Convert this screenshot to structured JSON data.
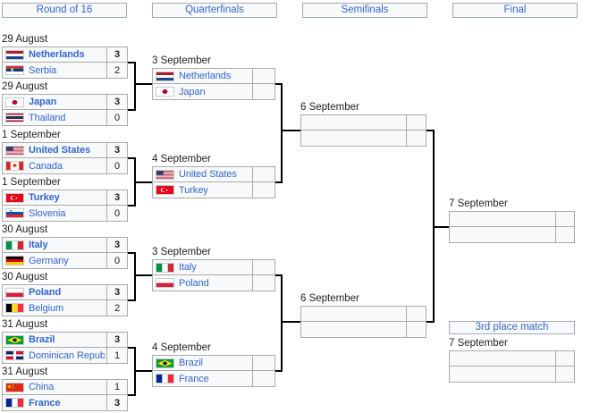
{
  "colors": {
    "link_blue": "#3366cc",
    "row_bg": "#f8f9fa",
    "row_border": "#aaaaaa",
    "header_bg": "#f8f9fa",
    "header_border": "#a2a9b1",
    "connector_line": "#000000",
    "text": "#202122"
  },
  "headers": [
    {
      "label": "Round of 16"
    },
    {
      "label": "Quarterfinals"
    },
    {
      "label": "Semifinals"
    },
    {
      "label": "Final"
    },
    {
      "label": "3rd place match"
    }
  ],
  "matches": [
    {
      "round": "r16",
      "date": "29 August",
      "teams": [
        {
          "flag": "netherlands",
          "name": "Netherlands",
          "score": "3",
          "winner": true
        },
        {
          "flag": "serbia",
          "name": "Serbia",
          "score": "2",
          "winner": false
        }
      ]
    },
    {
      "round": "r16",
      "date": "29 August",
      "teams": [
        {
          "flag": "japan",
          "name": "Japan",
          "score": "3",
          "winner": true
        },
        {
          "flag": "thailand",
          "name": "Thailand",
          "score": "0",
          "winner": false
        }
      ]
    },
    {
      "round": "r16",
      "date": "1 September",
      "teams": [
        {
          "flag": "united-states",
          "name": "United States",
          "score": "3",
          "winner": true
        },
        {
          "flag": "canada",
          "name": "Canada",
          "score": "0",
          "winner": false
        }
      ]
    },
    {
      "round": "r16",
      "date": "1 September",
      "teams": [
        {
          "flag": "turkey",
          "name": "Turkey",
          "score": "3",
          "winner": true
        },
        {
          "flag": "slovenia",
          "name": "Slovenia",
          "score": "0",
          "winner": false
        }
      ]
    },
    {
      "round": "r16",
      "date": "30 August",
      "teams": [
        {
          "flag": "italy",
          "name": "Italy",
          "score": "3",
          "winner": true
        },
        {
          "flag": "germany",
          "name": "Germany",
          "score": "0",
          "winner": false
        }
      ]
    },
    {
      "round": "r16",
      "date": "30 August",
      "teams": [
        {
          "flag": "poland",
          "name": "Poland",
          "score": "3",
          "winner": true
        },
        {
          "flag": "belgium",
          "name": "Belgium",
          "score": "2",
          "winner": false
        }
      ]
    },
    {
      "round": "r16",
      "date": "31 August",
      "teams": [
        {
          "flag": "brazil",
          "name": "Brazil",
          "score": "3",
          "winner": true
        },
        {
          "flag": "dominican-republic",
          "name": "Dominican Republic",
          "score": "1",
          "winner": false
        }
      ]
    },
    {
      "round": "r16",
      "date": "31 August",
      "teams": [
        {
          "flag": "china",
          "name": "China",
          "score": "1",
          "winner": false
        },
        {
          "flag": "france",
          "name": "France",
          "score": "3",
          "winner": true
        }
      ]
    },
    {
      "round": "qf",
      "date": "3 September",
      "teams": [
        {
          "flag": "netherlands",
          "name": "Netherlands",
          "score": "",
          "winner": false
        },
        {
          "flag": "japan",
          "name": "Japan",
          "score": "",
          "winner": false
        }
      ]
    },
    {
      "round": "qf",
      "date": "4 September",
      "teams": [
        {
          "flag": "united-states",
          "name": "United States",
          "score": "",
          "winner": false
        },
        {
          "flag": "turkey",
          "name": "Turkey",
          "score": "",
          "winner": false
        }
      ]
    },
    {
      "round": "qf",
      "date": "3 September",
      "teams": [
        {
          "flag": "italy",
          "name": "Italy",
          "score": "",
          "winner": false
        },
        {
          "flag": "poland",
          "name": "Poland",
          "score": "",
          "winner": false
        }
      ]
    },
    {
      "round": "qf",
      "date": "4 September",
      "teams": [
        {
          "flag": "brazil",
          "name": "Brazil",
          "score": "",
          "winner": false
        },
        {
          "flag": "france",
          "name": "France",
          "score": "",
          "winner": false
        }
      ]
    },
    {
      "round": "sf",
      "date": "6 September",
      "teams": [
        {
          "flag": null,
          "name": "",
          "score": "",
          "winner": false
        },
        {
          "flag": null,
          "name": "",
          "score": "",
          "winner": false
        }
      ]
    },
    {
      "round": "sf",
      "date": "6 September",
      "teams": [
        {
          "flag": null,
          "name": "",
          "score": "",
          "winner": false
        },
        {
          "flag": null,
          "name": "",
          "score": "",
          "winner": false
        }
      ]
    },
    {
      "round": "f",
      "date": "7 September",
      "teams": [
        {
          "flag": null,
          "name": "",
          "score": "",
          "winner": false
        },
        {
          "flag": null,
          "name": "",
          "score": "",
          "winner": false
        }
      ]
    },
    {
      "round": "tp",
      "date": "7 September",
      "teams": [
        {
          "flag": null,
          "name": "",
          "score": "",
          "winner": false
        },
        {
          "flag": null,
          "name": "",
          "score": "",
          "winner": false
        }
      ]
    }
  ]
}
